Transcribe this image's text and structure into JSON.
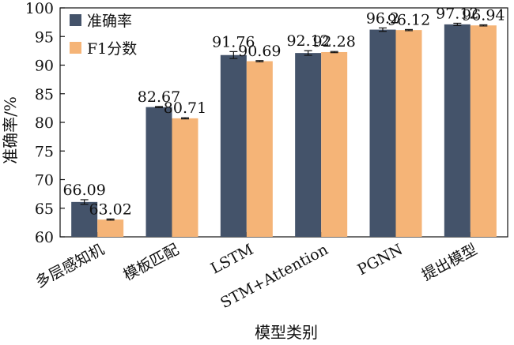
{
  "chart_data": {
    "type": "bar",
    "xlabel": "模型类别",
    "ylabel": "准确率/%",
    "ylim": [
      60,
      100
    ],
    "yticks": [
      60,
      65,
      70,
      75,
      80,
      85,
      90,
      95,
      100
    ],
    "categories": [
      "多层感知机",
      "模板匹配",
      "LSTM",
      "STM+Attention",
      "PGNN",
      "提出模型"
    ],
    "series": [
      {
        "name": "准确率",
        "color": "#44536a",
        "values": [
          66.09,
          82.67,
          91.76,
          92.12,
          96.2,
          97.12
        ],
        "labels": [
          "66.09",
          "82.67",
          "91.76",
          "92.12",
          "96.2",
          "97.12"
        ],
        "errors": [
          0.4,
          0.1,
          0.6,
          0.4,
          0.3,
          0.2
        ]
      },
      {
        "name": "F1分数",
        "color": "#f5b477",
        "values": [
          63.02,
          80.71,
          90.69,
          92.28,
          96.12,
          96.94
        ],
        "labels": [
          "63.02",
          "80.71",
          "90.69",
          "92.28",
          "96.12",
          "96.94"
        ],
        "errors": [
          0.1,
          0.1,
          0.1,
          0.1,
          0.1,
          0.1
        ]
      }
    ],
    "legend_position": "top-left",
    "grid": false
  }
}
